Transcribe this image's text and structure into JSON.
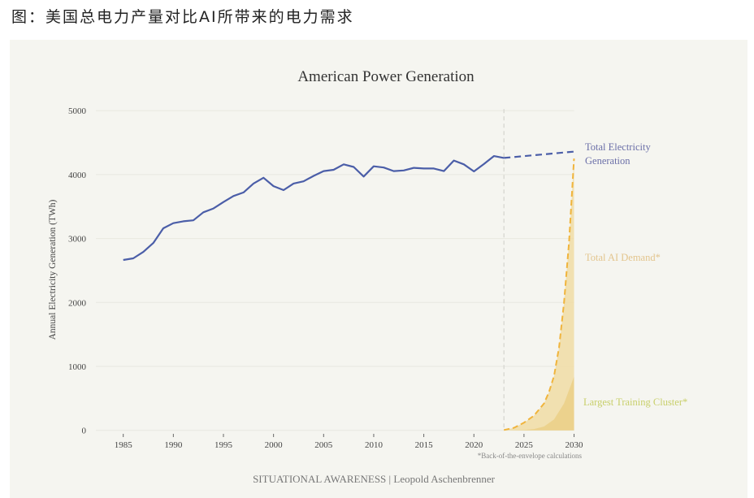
{
  "caption": "图：美国总电力产量对比AI所带来的电力需求",
  "chart_data": {
    "type": "line",
    "title": "American Power Generation",
    "xlabel": "",
    "ylabel": "Annual Electricity Generation (TWh)",
    "xlim": [
      1985,
      2030
    ],
    "ylim": [
      0,
      5000
    ],
    "x_ticks": [
      1985,
      1990,
      1995,
      2000,
      2005,
      2010,
      2015,
      2020,
      2025,
      2030
    ],
    "y_ticks": [
      0,
      1000,
      2000,
      3000,
      4000,
      5000
    ],
    "grid": "horizontal",
    "projection_start_year": 2023,
    "series": [
      {
        "name": "Total Electricity Generation",
        "style": "solid",
        "color": "#4b5ea8",
        "x": [
          1985,
          1986,
          1987,
          1988,
          1989,
          1990,
          1991,
          1992,
          1993,
          1994,
          1995,
          1996,
          1997,
          1998,
          1999,
          2000,
          2001,
          2002,
          2003,
          2004,
          2005,
          2006,
          2007,
          2008,
          2009,
          2010,
          2011,
          2012,
          2013,
          2014,
          2015,
          2016,
          2017,
          2018,
          2019,
          2020,
          2021,
          2022,
          2023
        ],
        "values": [
          2664,
          2690,
          2790,
          2930,
          3160,
          3240,
          3270,
          3285,
          3410,
          3470,
          3570,
          3665,
          3720,
          3860,
          3950,
          3820,
          3757,
          3860,
          3895,
          3980,
          4055,
          4075,
          4160,
          4120,
          3970,
          4130,
          4110,
          4055,
          4065,
          4105,
          4095,
          4095,
          4055,
          4220,
          4160,
          4050,
          4165,
          4290,
          4260
        ]
      },
      {
        "name": "Total Electricity Generation (projection)",
        "style": "dashed",
        "color": "#4b5ea8",
        "x": [
          2023,
          2030
        ],
        "values": [
          4260,
          4360
        ]
      },
      {
        "name": "Total AI Demand*",
        "style": "dashed-area",
        "color": "#f0b43c",
        "fill": "#f0dca4",
        "x": [
          2023,
          2024,
          2025,
          2026,
          2027,
          2027.5,
          2028,
          2028.5,
          2029,
          2029.5,
          2030
        ],
        "values": [
          5,
          40,
          120,
          230,
          420,
          600,
          850,
          1300,
          2000,
          2950,
          4250
        ]
      },
      {
        "name": "Largest Training Cluster*",
        "style": "area",
        "color": "#ebd08a",
        "x": [
          2023,
          2025,
          2026,
          2027,
          2028,
          2029,
          2030
        ],
        "values": [
          0,
          5,
          20,
          60,
          170,
          420,
          840
        ]
      }
    ],
    "annotations": {
      "total_generation_label_line1": "Total Electricity",
      "total_generation_label_line2": "Generation",
      "ai_demand_label": "Total AI Demand*",
      "training_cluster_label": "Largest Training Cluster*",
      "footnote": "*Back-of-the-envelope calculations"
    },
    "source": "SITUATIONAL AWARENESS | Leopold Aschenbrenner"
  }
}
